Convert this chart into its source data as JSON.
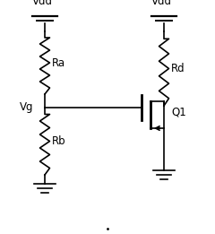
{
  "bg_color": "#ffffff",
  "line_color": "#000000",
  "labels": {
    "vdd_left": "Vdd",
    "vdd_right": "Vdd",
    "ra": "Ra",
    "rb": "Rb",
    "rd": "Rd",
    "vg": "Vg",
    "q1": "Q1"
  },
  "figsize": [
    2.4,
    2.61
  ],
  "dpi": 100
}
